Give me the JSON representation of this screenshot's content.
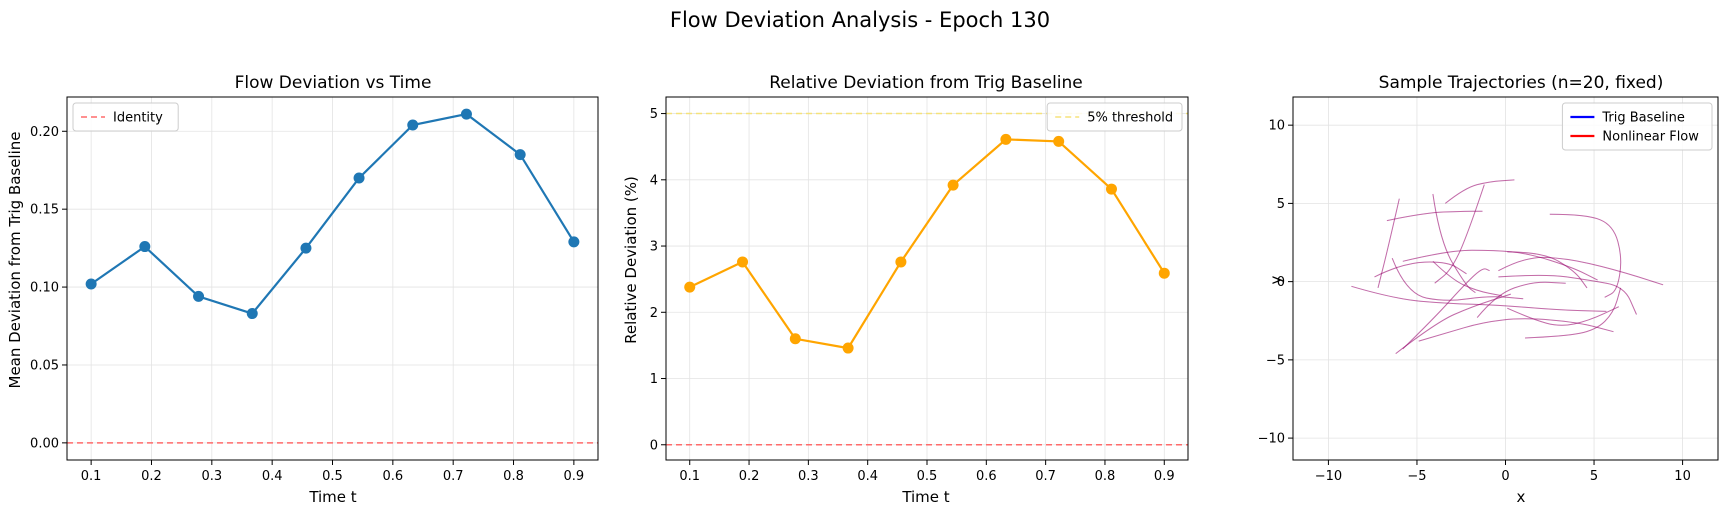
{
  "suptitle": "Flow Deviation Analysis - Epoch 130",
  "chart_data": [
    {
      "type": "line",
      "title": "Flow Deviation vs Time",
      "xlabel": "Time t",
      "ylabel": "Mean Deviation from Trig Baseline",
      "xlim": [
        0.06,
        0.94
      ],
      "ylim": [
        -0.011,
        0.222
      ],
      "xticks": [
        0.1,
        0.2,
        0.3,
        0.4,
        0.5,
        0.6,
        0.7,
        0.8,
        0.9
      ],
      "xtick_labels": [
        "0.1",
        "0.2",
        "0.3",
        "0.4",
        "0.5",
        "0.6",
        "0.7",
        "0.8",
        "0.9"
      ],
      "yticks": [
        0.0,
        0.05,
        0.1,
        0.15,
        0.2
      ],
      "ytick_labels": [
        "0.00",
        "0.05",
        "0.10",
        "0.15",
        "0.20"
      ],
      "grid": true,
      "legend_position": "upper-left",
      "series": [
        {
          "x": [
            0.1,
            0.189,
            0.278,
            0.367,
            0.456,
            0.544,
            0.633,
            0.722,
            0.811,
            0.9
          ],
          "y": [
            0.102,
            0.126,
            0.094,
            0.083,
            0.125,
            0.17,
            0.204,
            0.211,
            0.185,
            0.129
          ],
          "color": "#1f77b4",
          "style": "solid",
          "markers": true
        }
      ],
      "hlines": [
        {
          "y": 0.0,
          "name": "Identity",
          "color": "#ff6b6b",
          "style": "dashed"
        }
      ]
    },
    {
      "type": "line",
      "title": "Relative Deviation from Trig Baseline",
      "xlabel": "Time t",
      "ylabel": "Relative Deviation (%)",
      "xlim": [
        0.06,
        0.94
      ],
      "ylim": [
        -0.23,
        5.25
      ],
      "xticks": [
        0.1,
        0.2,
        0.3,
        0.4,
        0.5,
        0.6,
        0.7,
        0.8,
        0.9
      ],
      "xtick_labels": [
        "0.1",
        "0.2",
        "0.3",
        "0.4",
        "0.5",
        "0.6",
        "0.7",
        "0.8",
        "0.9"
      ],
      "yticks": [
        0,
        1,
        2,
        3,
        4,
        5
      ],
      "ytick_labels": [
        "0",
        "1",
        "2",
        "3",
        "4",
        "5"
      ],
      "grid": true,
      "legend_position": "upper-right",
      "series": [
        {
          "x": [
            0.1,
            0.189,
            0.278,
            0.367,
            0.456,
            0.544,
            0.633,
            0.722,
            0.811,
            0.9
          ],
          "y": [
            2.38,
            2.76,
            1.6,
            1.46,
            2.76,
            3.92,
            4.61,
            4.58,
            3.86,
            2.59
          ],
          "color": "#ffa500",
          "style": "solid",
          "markers": true
        }
      ],
      "hlines": [
        {
          "y": 5,
          "name": "5% threshold",
          "color": "#f5e27a",
          "style": "dashed"
        },
        {
          "y": 0,
          "color": "#ff6b6b",
          "style": "dashed"
        }
      ]
    },
    {
      "type": "line",
      "title": "Sample Trajectories (n=20, fixed)",
      "xlabel": "x",
      "ylabel": "y",
      "xlim": [
        -12,
        12
      ],
      "ylim": [
        -11.4,
        11.8
      ],
      "xticks": [
        -10,
        -5,
        0,
        5,
        10
      ],
      "xtick_labels": [
        "−10",
        "−5",
        "0",
        "5",
        "10"
      ],
      "yticks": [
        -10,
        -5,
        0,
        5,
        10
      ],
      "ytick_labels": [
        "−10",
        "−5",
        "0",
        "5",
        "10"
      ],
      "grid": true,
      "legend_position": "upper-right",
      "legend": [
        {
          "name": "Trig Baseline",
          "color": "#0000ff"
        },
        {
          "name": "Nonlinear Flow",
          "color": "#ff0000"
        }
      ],
      "trajectories": [
        {
          "points": [
            [
              -6.0,
              5.3
            ],
            [
              -6.6,
              2.3
            ],
            [
              -7.2,
              -0.4
            ]
          ]
        },
        {
          "points": [
            [
              -4.1,
              5.6
            ],
            [
              -3.7,
              2.5
            ],
            [
              -2.2,
              -0.3
            ],
            [
              -1.7,
              -0.7
            ]
          ]
        },
        {
          "points": [
            [
              -7.4,
              0.3
            ],
            [
              -5.8,
              1.2
            ],
            [
              -3.3,
              1.3
            ],
            [
              -2.2,
              0.5
            ]
          ]
        },
        {
          "points": [
            [
              -1.2,
              6.2
            ],
            [
              -2.2,
              2.8
            ],
            [
              -3.1,
              0.7
            ],
            [
              -4.0,
              -0.1
            ]
          ]
        },
        {
          "points": [
            [
              -3.4,
              5.0
            ],
            [
              -2.3,
              6.0
            ],
            [
              -0.9,
              6.4
            ],
            [
              0.5,
              6.5
            ]
          ]
        },
        {
          "points": [
            [
              -6.7,
              3.9
            ],
            [
              -4.6,
              4.4
            ],
            [
              -2.4,
              4.5
            ],
            [
              -1.3,
              4.5
            ]
          ]
        },
        {
          "points": [
            [
              2.5,
              4.3
            ],
            [
              4.6,
              4.3
            ],
            [
              6.1,
              3.6
            ],
            [
              6.6,
              1.5
            ],
            [
              6.3,
              -0.6
            ],
            [
              5.6,
              -1.0
            ]
          ]
        },
        {
          "points": [
            [
              -5.8,
              1.3
            ],
            [
              -3.2,
              2.0
            ],
            [
              -0.6,
              2.0
            ],
            [
              1.3,
              1.8
            ],
            [
              3.8,
              0.9
            ],
            [
              5.2,
              0.1
            ]
          ]
        },
        {
          "points": [
            [
              -4.9,
              -3.8
            ],
            [
              -3.4,
              -3.3
            ],
            [
              -1.3,
              -2.6
            ],
            [
              1.0,
              -2.3
            ],
            [
              4.1,
              -2.6
            ],
            [
              6.1,
              -3.2
            ]
          ]
        },
        {
          "points": [
            [
              -6.2,
              -4.6
            ],
            [
              -3.9,
              -2.6
            ],
            [
              -1.9,
              -1.6
            ],
            [
              0.3,
              -0.8
            ]
          ]
        },
        {
          "points": [
            [
              -8.7,
              -0.3
            ],
            [
              -6.3,
              -1.1
            ],
            [
              -3.3,
              -1.4
            ],
            [
              -0.4,
              -1.5
            ],
            [
              2.8,
              -1.8
            ],
            [
              5.7,
              -1.9
            ]
          ]
        },
        {
          "points": [
            [
              -0.4,
              0.3
            ],
            [
              2.2,
              0.5
            ],
            [
              4.7,
              0.1
            ],
            [
              6.7,
              -0.3
            ],
            [
              7.4,
              -2.1
            ]
          ]
        },
        {
          "points": [
            [
              -5.8,
              -4.3
            ],
            [
              -4.0,
              -2.3
            ],
            [
              -2.4,
              -0.3
            ],
            [
              -1.3,
              0.9
            ],
            [
              -0.9,
              0.7
            ]
          ]
        },
        {
          "points": [
            [
              1.1,
              -3.6
            ],
            [
              3.3,
              -3.5
            ],
            [
              5.1,
              -3.1
            ],
            [
              6.1,
              -2.0
            ],
            [
              6.5,
              -0.4
            ]
          ]
        },
        {
          "points": [
            [
              -0.4,
              0.7
            ],
            [
              1.1,
              1.6
            ],
            [
              3.4,
              1.5
            ],
            [
              6.1,
              0.8
            ],
            [
              8.9,
              -0.2
            ]
          ]
        },
        {
          "points": [
            [
              0.1,
              1.9
            ],
            [
              2.1,
              1.9
            ],
            [
              3.9,
              0.7
            ],
            [
              4.6,
              -0.4
            ]
          ]
        },
        {
          "points": [
            [
              -1.6,
              -2.3
            ],
            [
              -0.5,
              -0.8
            ],
            [
              1.5,
              0.0
            ],
            [
              3.4,
              -0.1
            ]
          ]
        },
        {
          "points": [
            [
              -4.1,
              1.3
            ],
            [
              -3.0,
              0.1
            ],
            [
              -1.6,
              -0.6
            ],
            [
              -0.2,
              -0.9
            ]
          ]
        },
        {
          "points": [
            [
              -6.4,
              1.5
            ],
            [
              -5.6,
              -0.8
            ],
            [
              -3.3,
              -1.3
            ],
            [
              -0.9,
              -0.9
            ],
            [
              1.0,
              -1.1
            ]
          ]
        },
        {
          "points": [
            [
              0.1,
              -1.7
            ],
            [
              1.5,
              -2.4
            ],
            [
              3.1,
              -2.9
            ],
            [
              4.7,
              -2.5
            ],
            [
              6.4,
              -1.6
            ]
          ]
        }
      ]
    }
  ]
}
